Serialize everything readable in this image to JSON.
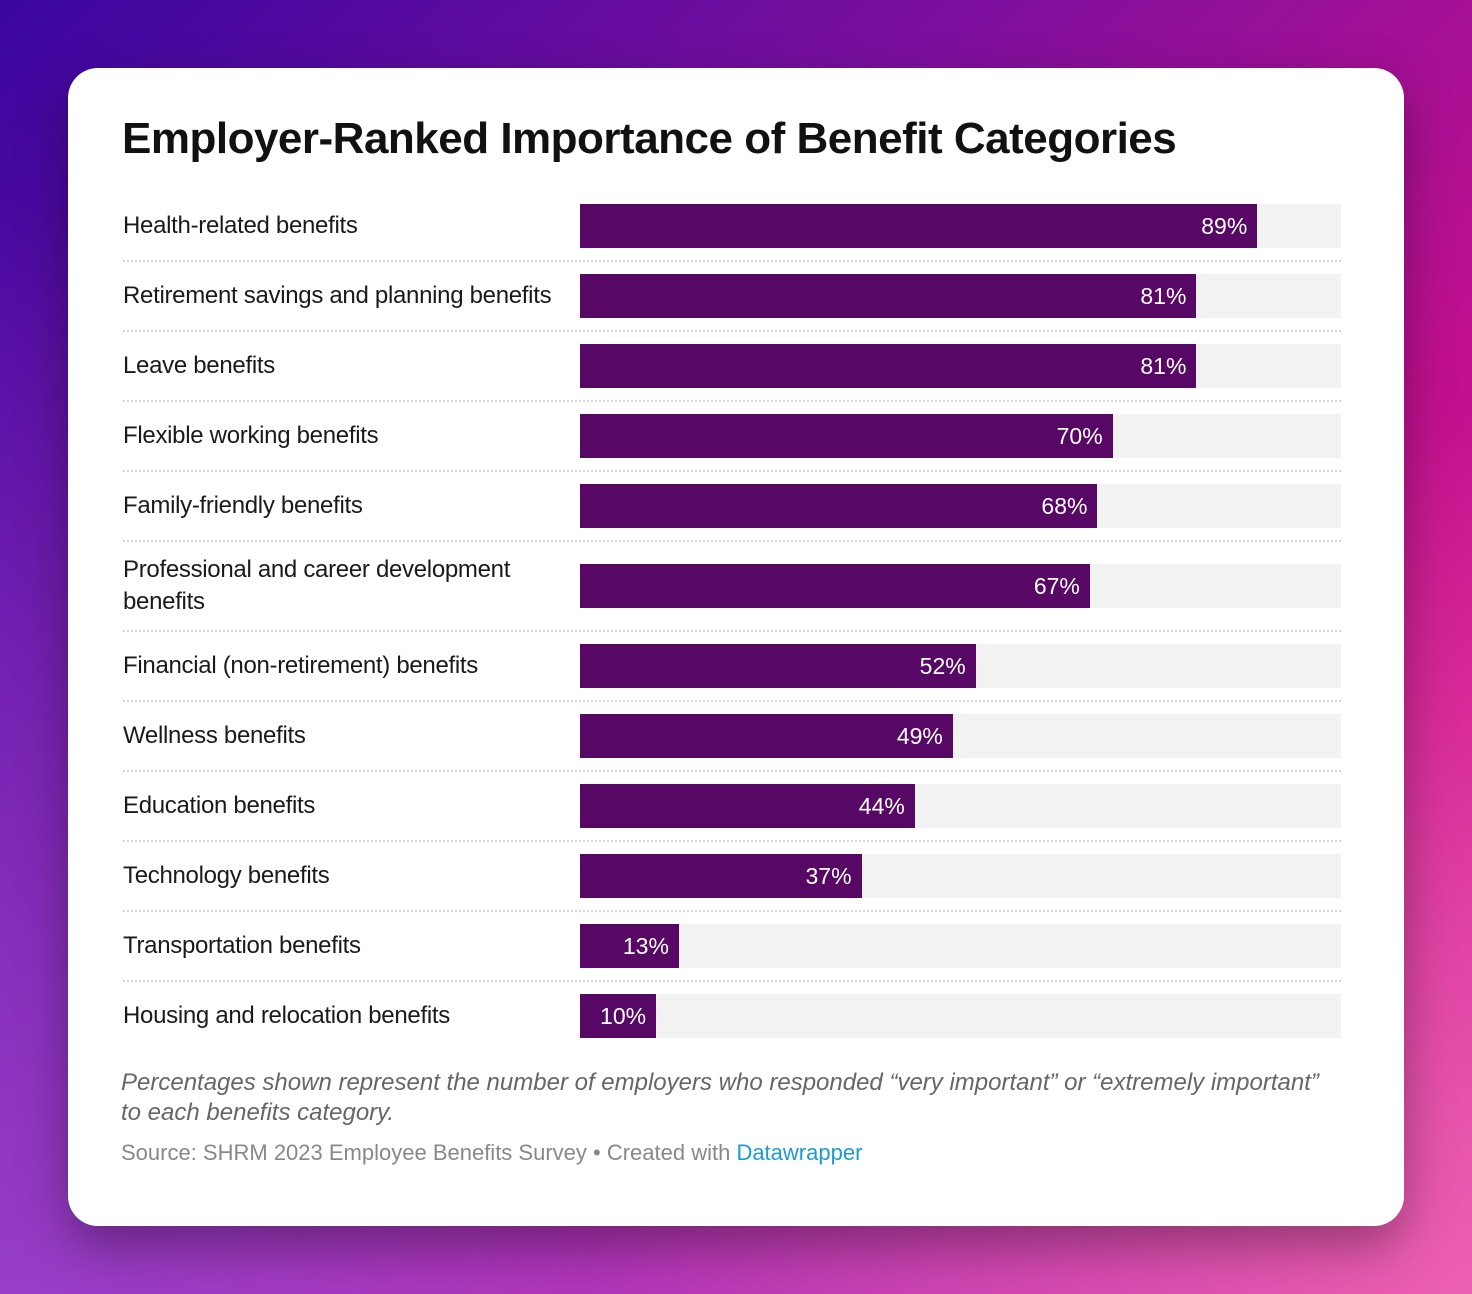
{
  "colors": {
    "bar": "#570764",
    "track": "#f2f2f2",
    "link": "#1d9ad6"
  },
  "chart_data": {
    "type": "bar",
    "orientation": "horizontal",
    "title": "Employer-Ranked Importance of Benefit Categories",
    "xlim": [
      0,
      100
    ],
    "grid": false,
    "categories": [
      "Health-related benefits",
      "Retirement savings and planning benefits",
      "Leave benefits",
      "Flexible working benefits",
      "Family-friendly benefits",
      "Professional and career development benefits",
      "Financial (non-retirement) benefits",
      "Wellness benefits",
      "Education benefits",
      "Technology benefits",
      "Transportation benefits",
      "Housing and relocation benefits"
    ],
    "values": [
      89,
      81,
      81,
      70,
      68,
      67,
      52,
      49,
      44,
      37,
      13,
      10
    ],
    "value_labels": [
      "89%",
      "81%",
      "81%",
      "70%",
      "68%",
      "67%",
      "52%",
      "49%",
      "44%",
      "37%",
      "13%",
      "10%"
    ]
  },
  "footer": {
    "note": "Percentages shown represent the number of employers who responded “very important” or “extremely important” to each benefits category.",
    "source_prefix": "Source: SHRM 2023 Employee Benefits Survey • Created with ",
    "link": "Datawrapper"
  }
}
